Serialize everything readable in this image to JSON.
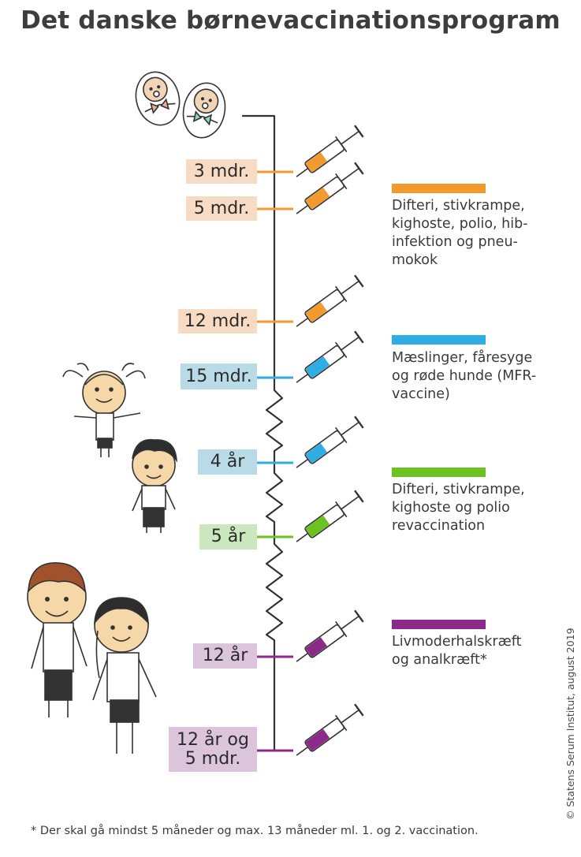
{
  "title": "Det danske børnevaccinationsprogram",
  "milestones": [
    {
      "label": "3 mdr.",
      "vaccine": "orange"
    },
    {
      "label": "5 mdr.",
      "vaccine": "orange"
    },
    {
      "label": "12 mdr.",
      "vaccine": "orange"
    },
    {
      "label": "15 mdr.",
      "vaccine": "blue"
    },
    {
      "label": "4 år",
      "vaccine": "blue"
    },
    {
      "label": "5 år",
      "vaccine": "green"
    },
    {
      "label": "12 år",
      "vaccine": "purple"
    },
    {
      "label": "12 år og\n5 mdr.",
      "vaccine": "purple"
    }
  ],
  "legend": [
    {
      "key": "orange",
      "text": "Difteri, stivkrampe,\nkighoste, polio, hib-\ninfektion og pneu-\nmokok"
    },
    {
      "key": "blue",
      "text": "Mæslinger, fåresyge\nog røde hunde (MFR-\nvaccine)"
    },
    {
      "key": "green",
      "text": "Difteri, stivkrampe,\nkighoste og polio\nrevaccination"
    },
    {
      "key": "purple",
      "text": "Livmoderhalskræft\nog analkræft*"
    }
  ],
  "colors": {
    "orange": "#f29a2e",
    "blue": "#2eaee4",
    "green": "#6cc21e",
    "purple": "#8c2a8a",
    "orange_bg": "#f7dcc3",
    "blue_bg": "#b9dae7",
    "green_bg": "#cbe7bd",
    "purple_bg": "#dcc4dc",
    "line": "#333333"
  },
  "footnote": "* Der skal gå mindst 5 måneder og max. 13 måneder ml. 1. og 2. vaccination.",
  "credit": "© Statens Serum Institut, august 2019",
  "illustrations": [
    {
      "name": "newborn-babies-illustration"
    },
    {
      "name": "toddler-girl-illustration"
    },
    {
      "name": "young-boy-illustration"
    },
    {
      "name": "teen-boy-and-girl-illustration"
    }
  ]
}
